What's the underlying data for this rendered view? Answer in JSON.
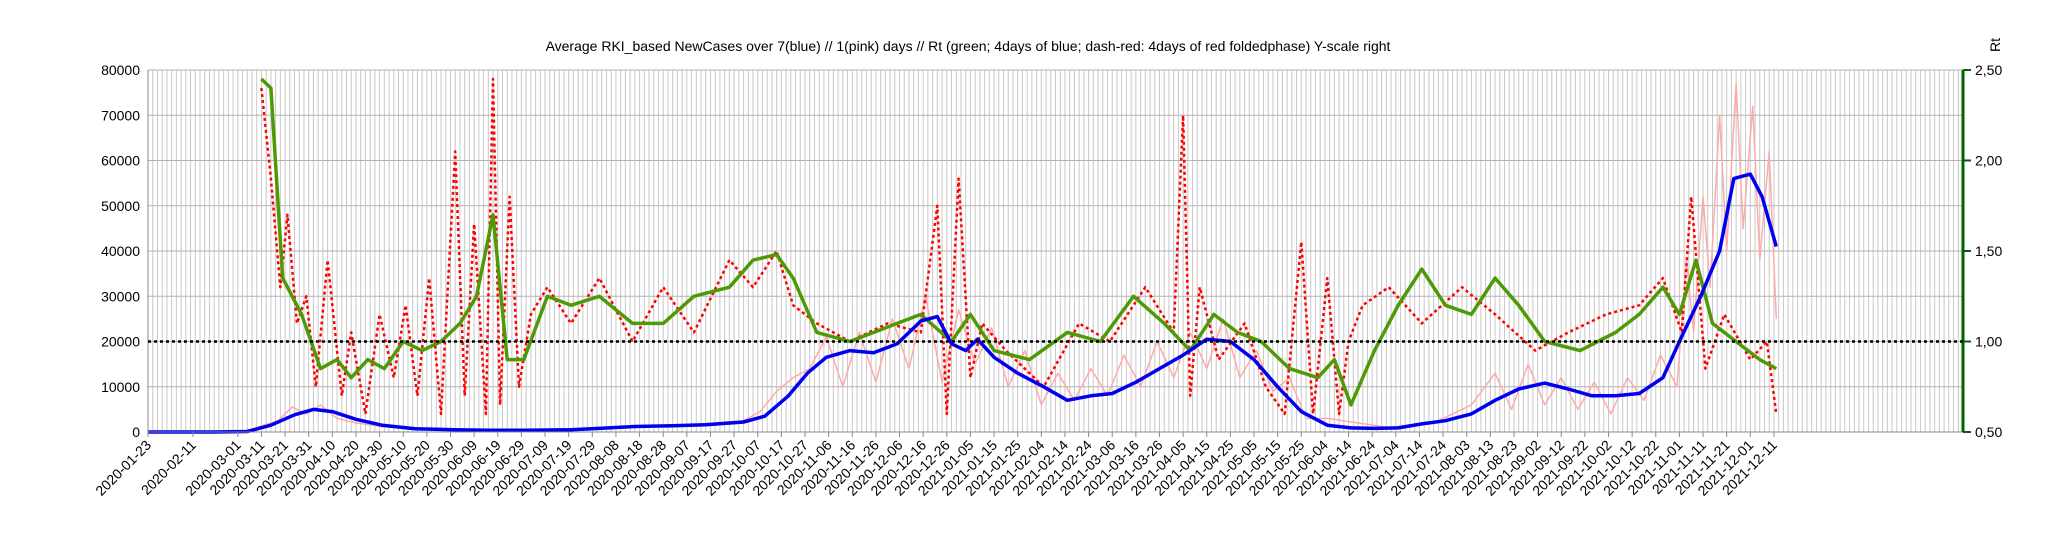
{
  "chart_data": {
    "type": "line",
    "title": "Average RKI_based NewCases over 7(blue) // 1(pink) days //  Rt (green; 4days of blue; dash-red: 4days of red foldedphase) Y-scale right",
    "ylabel_right": "Rt",
    "ylim_left": [
      0,
      80000
    ],
    "ylim_right": [
      0.5,
      2.5
    ],
    "y_ticks_left": [
      "0",
      "10000",
      "20000",
      "30000",
      "40000",
      "50000",
      "60000",
      "70000",
      "80000"
    ],
    "y_ticks_right": [
      "0,50",
      "1,00",
      "1,50",
      "2,00",
      "2,50"
    ],
    "reference_line_right": 1.0,
    "x_range": [
      "2020-01-23",
      "2022-03-01"
    ],
    "x_tick_labels": [
      "2020-01-23",
      "2020-02-11",
      "2020-03-01",
      "2020-03-11",
      "2020-03-21",
      "2020-03-31",
      "2020-04-10",
      "2020-04-20",
      "2020-04-30",
      "2020-05-10",
      "2020-05-20",
      "2020-05-30",
      "2020-06-09",
      "2020-06-19",
      "2020-06-29",
      "2020-07-09",
      "2020-07-19",
      "2020-07-29",
      "2020-08-08",
      "2020-08-18",
      "2020-08-28",
      "2020-09-07",
      "2020-09-17",
      "2020-09-27",
      "2020-10-07",
      "2020-10-17",
      "2020-10-27",
      "2020-11-06",
      "2020-11-16",
      "2020-11-26",
      "2020-12-06",
      "2020-12-16",
      "2020-12-26",
      "2021-01-05",
      "2021-01-15",
      "2021-01-25",
      "2021-02-04",
      "2021-02-14",
      "2021-02-24",
      "2021-03-06",
      "2021-03-16",
      "2021-03-26",
      "2021-04-05",
      "2021-04-15",
      "2021-04-25",
      "2021-05-05",
      "2021-05-15",
      "2021-05-25",
      "2021-06-04",
      "2021-06-14",
      "2021-06-24",
      "2021-07-04",
      "2021-07-14",
      "2021-07-24",
      "2021-08-03",
      "2021-08-13",
      "2021-08-23",
      "2021-09-02",
      "2021-09-12",
      "2021-09-22",
      "2021-10-02",
      "2021-10-12",
      "2021-10-22",
      "2021-11-01",
      "2021-11-11",
      "2021-11-21",
      "2021-12-01",
      "2021-12-11"
    ],
    "grid": true,
    "colors": {
      "blue": "#0000ee",
      "pink": "#ffaaaa",
      "green": "#4e9a06",
      "red": "#ff0000",
      "axis_right": "#006400"
    },
    "series": [
      {
        "axis": "left",
        "color": "#0000ee",
        "x": [
          "2020-01-23",
          "2020-02-20",
          "2020-03-05",
          "2020-03-15",
          "2020-03-25",
          "2020-04-02",
          "2020-04-10",
          "2020-04-20",
          "2020-05-01",
          "2020-05-15",
          "2020-06-01",
          "2020-06-15",
          "2020-07-01",
          "2020-07-20",
          "2020-08-01",
          "2020-08-15",
          "2020-09-01",
          "2020-09-15",
          "2020-10-01",
          "2020-10-10",
          "2020-10-20",
          "2020-10-28",
          "2020-11-05",
          "2020-11-15",
          "2020-11-25",
          "2020-12-05",
          "2020-12-15",
          "2020-12-22",
          "2020-12-28",
          "2021-01-03",
          "2021-01-08",
          "2021-01-15",
          "2021-01-25",
          "2021-02-05",
          "2021-02-15",
          "2021-02-25",
          "2021-03-06",
          "2021-03-16",
          "2021-03-26",
          "2021-04-05",
          "2021-04-15",
          "2021-04-25",
          "2021-05-05",
          "2021-05-15",
          "2021-05-25",
          "2021-06-05",
          "2021-06-15",
          "2021-06-25",
          "2021-07-05",
          "2021-07-15",
          "2021-07-25",
          "2021-08-05",
          "2021-08-15",
          "2021-08-25",
          "2021-09-05",
          "2021-09-15",
          "2021-09-25",
          "2021-10-05",
          "2021-10-15",
          "2021-10-25",
          "2021-11-01",
          "2021-11-10",
          "2021-11-18",
          "2021-11-24",
          "2021-12-01",
          "2021-12-06",
          "2021-12-12"
        ],
        "y": [
          0,
          0,
          100,
          1500,
          3800,
          5000,
          4500,
          2800,
          1500,
          700,
          500,
          400,
          400,
          500,
          800,
          1200,
          1400,
          1600,
          2200,
          3500,
          8000,
          13000,
          16500,
          18000,
          17500,
          19500,
          24500,
          25500,
          19500,
          18000,
          20500,
          16500,
          13000,
          10000,
          7000,
          8000,
          8500,
          11000,
          14000,
          17000,
          20500,
          20000,
          16000,
          10000,
          4500,
          1500,
          900,
          800,
          900,
          1800,
          2500,
          4000,
          7000,
          9500,
          10800,
          9500,
          8000,
          8000,
          8500,
          12000,
          20000,
          30000,
          40000,
          56000,
          57000,
          52000,
          41000
        ]
      },
      {
        "axis": "right",
        "color": "#4e9a06",
        "x": [
          "2020-03-11",
          "2020-03-15",
          "2020-03-20",
          "2020-03-28",
          "2020-04-05",
          "2020-04-12",
          "2020-04-18",
          "2020-04-25",
          "2020-05-02",
          "2020-05-10",
          "2020-05-18",
          "2020-05-26",
          "2020-06-03",
          "2020-06-10",
          "2020-06-17",
          "2020-06-23",
          "2020-06-30",
          "2020-07-10",
          "2020-07-20",
          "2020-08-01",
          "2020-08-15",
          "2020-08-28",
          "2020-09-10",
          "2020-09-25",
          "2020-10-05",
          "2020-10-15",
          "2020-10-22",
          "2020-11-01",
          "2020-11-15",
          "2020-12-01",
          "2020-12-15",
          "2020-12-28",
          "2021-01-05",
          "2021-01-15",
          "2021-01-30",
          "2021-02-15",
          "2021-03-01",
          "2021-03-15",
          "2021-03-28",
          "2021-04-08",
          "2021-04-18",
          "2021-04-28",
          "2021-05-08",
          "2021-05-20",
          "2021-06-01",
          "2021-06-08",
          "2021-06-15",
          "2021-06-25",
          "2021-07-05",
          "2021-07-15",
          "2021-07-25",
          "2021-08-05",
          "2021-08-15",
          "2021-08-25",
          "2021-09-05",
          "2021-09-20",
          "2021-10-05",
          "2021-10-15",
          "2021-10-25",
          "2021-11-01",
          "2021-11-08",
          "2021-11-15",
          "2021-11-25",
          "2021-12-05",
          "2021-12-12"
        ],
        "y": [
          2.45,
          2.4,
          1.35,
          1.15,
          0.85,
          0.9,
          0.8,
          0.9,
          0.85,
          1.0,
          0.95,
          1.0,
          1.1,
          1.25,
          1.7,
          0.9,
          0.9,
          1.25,
          1.2,
          1.25,
          1.1,
          1.1,
          1.25,
          1.3,
          1.45,
          1.48,
          1.35,
          1.05,
          1.0,
          1.08,
          1.15,
          1.0,
          1.15,
          0.95,
          0.9,
          1.05,
          1.0,
          1.25,
          1.1,
          0.95,
          1.15,
          1.05,
          1.0,
          0.85,
          0.8,
          0.9,
          0.65,
          0.95,
          1.2,
          1.4,
          1.2,
          1.15,
          1.35,
          1.2,
          1.0,
          0.95,
          1.05,
          1.15,
          1.3,
          1.15,
          1.45,
          1.1,
          1.0,
          0.9,
          0.85
        ]
      },
      {
        "axis": "right",
        "color": "#ff0000",
        "dashed": true,
        "x": [
          "2020-03-11",
          "2020-03-15",
          "2020-03-19",
          "2020-03-22",
          "2020-03-26",
          "2020-03-30",
          "2020-04-03",
          "2020-04-08",
          "2020-04-14",
          "2020-04-18",
          "2020-04-24",
          "2020-04-30",
          "2020-05-06",
          "2020-05-11",
          "2020-05-16",
          "2020-05-21",
          "2020-05-26",
          "2020-06-01",
          "2020-06-05",
          "2020-06-09",
          "2020-06-14",
          "2020-06-17",
          "2020-06-20",
          "2020-06-24",
          "2020-06-28",
          "2020-07-03",
          "2020-07-10",
          "2020-07-20",
          "2020-08-01",
          "2020-08-15",
          "2020-08-28",
          "2020-09-10",
          "2020-09-25",
          "2020-10-05",
          "2020-10-15",
          "2020-10-22",
          "2020-11-01",
          "2020-11-15",
          "2020-12-01",
          "2020-12-15",
          "2020-12-22",
          "2020-12-26",
          "2020-12-31",
          "2021-01-05",
          "2021-01-10",
          "2021-01-20",
          "2021-02-05",
          "2021-02-20",
          "2021-03-05",
          "2021-03-20",
          "2021-04-01",
          "2021-04-05",
          "2021-04-08",
          "2021-04-12",
          "2021-04-20",
          "2021-05-01",
          "2021-05-10",
          "2021-05-18",
          "2021-05-25",
          "2021-05-30",
          "2021-06-05",
          "2021-06-10",
          "2021-06-14",
          "2021-06-20",
          "2021-07-01",
          "2021-07-15",
          "2021-08-01",
          "2021-08-15",
          "2021-09-01",
          "2021-09-15",
          "2021-10-01",
          "2021-10-15",
          "2021-10-25",
          "2021-11-02",
          "2021-11-06",
          "2021-11-12",
          "2021-11-20",
          "2021-12-01",
          "2021-12-08",
          "2021-12-12"
        ],
        "y": [
          2.4,
          1.9,
          1.3,
          1.7,
          1.1,
          1.25,
          0.75,
          1.45,
          0.7,
          1.05,
          0.6,
          1.15,
          0.8,
          1.2,
          0.7,
          1.35,
          0.6,
          2.05,
          0.7,
          1.65,
          0.6,
          2.45,
          0.65,
          1.8,
          0.75,
          1.15,
          1.3,
          1.1,
          1.35,
          1.0,
          1.3,
          1.05,
          1.45,
          1.3,
          1.5,
          1.2,
          1.1,
          1.0,
          1.1,
          1.05,
          1.75,
          0.6,
          1.9,
          0.8,
          1.1,
          0.95,
          0.75,
          1.1,
          1.0,
          1.3,
          1.05,
          2.25,
          0.7,
          1.3,
          0.9,
          1.1,
          0.75,
          0.6,
          1.55,
          0.6,
          1.35,
          0.6,
          1.0,
          1.2,
          1.3,
          1.1,
          1.3,
          1.15,
          0.95,
          1.05,
          1.15,
          1.2,
          1.35,
          1.05,
          1.8,
          0.85,
          1.15,
          0.9,
          1.0,
          0.6
        ]
      },
      {
        "axis": "left",
        "color": "#ffaaaa",
        "x": [
          "2020-03-05",
          "2020-03-12",
          "2020-03-18",
          "2020-03-24",
          "2020-03-30",
          "2020-04-05",
          "2020-04-12",
          "2020-04-20",
          "2020-05-01",
          "2020-06-01",
          "2020-07-01",
          "2020-08-01",
          "2020-09-01",
          "2020-10-01",
          "2020-10-08",
          "2020-10-15",
          "2020-10-22",
          "2020-10-29",
          "2020-11-05",
          "2020-11-12",
          "2020-11-19",
          "2020-11-26",
          "2020-12-03",
          "2020-12-10",
          "2020-12-17",
          "2020-12-24",
          "2020-12-31",
          "2021-01-07",
          "2021-01-14",
          "2021-01-21",
          "2021-01-28",
          "2021-02-04",
          "2021-02-11",
          "2021-02-18",
          "2021-02-25",
          "2021-03-04",
          "2021-03-11",
          "2021-03-18",
          "2021-03-25",
          "2021-04-01",
          "2021-04-08",
          "2021-04-15",
          "2021-04-22",
          "2021-04-29",
          "2021-05-06",
          "2021-05-13",
          "2021-05-20",
          "2021-05-27",
          "2021-06-05",
          "2021-07-01",
          "2021-07-20",
          "2021-08-05",
          "2021-08-15",
          "2021-08-22",
          "2021-08-29",
          "2021-09-05",
          "2021-09-12",
          "2021-09-19",
          "2021-09-26",
          "2021-10-03",
          "2021-10-10",
          "2021-10-17",
          "2021-10-24",
          "2021-10-31",
          "2021-11-04",
          "2021-11-07",
          "2021-11-11",
          "2021-11-14",
          "2021-11-18",
          "2021-11-21",
          "2021-11-25",
          "2021-11-28",
          "2021-12-02",
          "2021-12-05",
          "2021-12-09",
          "2021-12-12"
        ],
        "y": [
          200,
          1500,
          2500,
          5500,
          4000,
          6000,
          3000,
          2000,
          1200,
          500,
          500,
          900,
          1300,
          2500,
          4500,
          9000,
          12000,
          14000,
          21000,
          10000,
          22000,
          11000,
          25000,
          14000,
          30000,
          11000,
          27000,
          15000,
          23000,
          10000,
          18000,
          6000,
          13000,
          7000,
          14000,
          8000,
          17000,
          10000,
          20000,
          12000,
          22000,
          14000,
          25000,
          12000,
          18000,
          9000,
          12000,
          3000,
          3000,
          1000,
          2000,
          6000,
          13000,
          5000,
          15000,
          6000,
          12000,
          5000,
          11000,
          4000,
          12000,
          7000,
          17000,
          10000,
          38000,
          22000,
          52000,
          32000,
          70000,
          40000,
          77000,
          45000,
          72000,
          38000,
          62000,
          25000
        ]
      }
    ]
  }
}
